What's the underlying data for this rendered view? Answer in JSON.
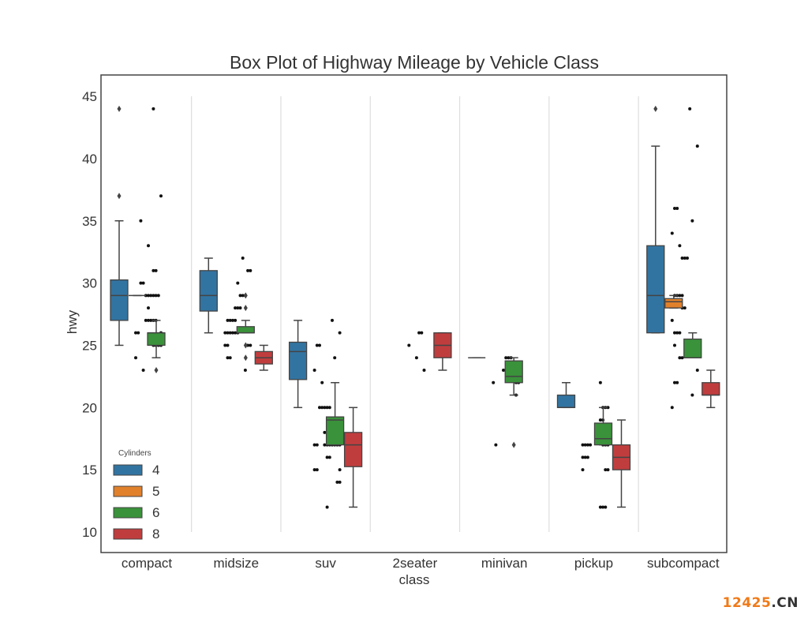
{
  "chart_data": {
    "type": "box",
    "title": "Box Plot of Highway Mileage by Vehicle Class",
    "xlabel": "class",
    "ylabel": "hwy",
    "ylim": [
      8.5,
      46.7
    ],
    "yticks": [
      10,
      15,
      20,
      25,
      30,
      35,
      40,
      45
    ],
    "categories": [
      "compact",
      "midsize",
      "suv",
      "2seater",
      "minivan",
      "pickup",
      "subcompact"
    ],
    "grid": "vertical separators between classes",
    "legend": {
      "title": "Cylinders",
      "placement": "lower-left",
      "entries": [
        {
          "label": "4",
          "color": "#3274a1"
        },
        {
          "label": "5",
          "color": "#e1812c"
        },
        {
          "label": "6",
          "color": "#3a923a"
        },
        {
          "label": "8",
          "color": "#c03d3e"
        }
      ]
    },
    "hue_order": [
      "4",
      "5",
      "6",
      "8"
    ],
    "boxes": [
      {
        "category": "compact",
        "hue": "4",
        "q1": 27,
        "median": 29,
        "q3": 30.25,
        "whislo": 25,
        "whishi": 35,
        "fliers": [
          37,
          44
        ]
      },
      {
        "category": "compact",
        "hue": "5",
        "q1": 29,
        "median": 29,
        "q3": 29,
        "whislo": 29,
        "whishi": 29,
        "fliers": []
      },
      {
        "category": "compact",
        "hue": "6",
        "q1": 25,
        "median": 26,
        "q3": 26,
        "whislo": 24,
        "whishi": 27,
        "fliers": [
          23
        ]
      },
      {
        "category": "midsize",
        "hue": "4",
        "q1": 27.75,
        "median": 29,
        "q3": 31,
        "whislo": 26,
        "whishi": 32,
        "fliers": []
      },
      {
        "category": "midsize",
        "hue": "6",
        "q1": 26,
        "median": 26,
        "q3": 26.5,
        "whislo": 26,
        "whishi": 27,
        "fliers": [
          29,
          28,
          25,
          24
        ]
      },
      {
        "category": "midsize",
        "hue": "8",
        "q1": 23.5,
        "median": 24,
        "q3": 24.5,
        "whislo": 23,
        "whishi": 25,
        "fliers": []
      },
      {
        "category": "suv",
        "hue": "4",
        "q1": 22.25,
        "median": 24.5,
        "q3": 25.25,
        "whislo": 20,
        "whishi": 27,
        "fliers": []
      },
      {
        "category": "suv",
        "hue": "6",
        "q1": 17,
        "median": 19,
        "q3": 19.25,
        "whislo": 17,
        "whishi": 22,
        "fliers": []
      },
      {
        "category": "suv",
        "hue": "8",
        "q1": 15.25,
        "median": 17,
        "q3": 18,
        "whislo": 12,
        "whishi": 20,
        "fliers": []
      },
      {
        "category": "2seater",
        "hue": "8",
        "q1": 24,
        "median": 25,
        "q3": 26,
        "whislo": 23,
        "whishi": 26,
        "fliers": []
      },
      {
        "category": "minivan",
        "hue": "4",
        "q1": 24,
        "median": 24,
        "q3": 24,
        "whislo": 24,
        "whishi": 24,
        "fliers": []
      },
      {
        "category": "minivan",
        "hue": "6",
        "q1": 22,
        "median": 22.5,
        "q3": 23.75,
        "whislo": 21,
        "whishi": 24,
        "fliers": [
          17
        ]
      },
      {
        "category": "pickup",
        "hue": "4",
        "q1": 20,
        "median": 20,
        "q3": 21,
        "whislo": 20,
        "whishi": 22,
        "fliers": []
      },
      {
        "category": "pickup",
        "hue": "6",
        "q1": 17,
        "median": 17.5,
        "q3": 18.75,
        "whislo": 17,
        "whishi": 20,
        "fliers": []
      },
      {
        "category": "pickup",
        "hue": "8",
        "q1": 15,
        "median": 16,
        "q3": 17,
        "whislo": 12,
        "whishi": 19,
        "fliers": []
      },
      {
        "category": "subcompact",
        "hue": "4",
        "q1": 26,
        "median": 29,
        "q3": 33,
        "whislo": 26,
        "whishi": 41,
        "fliers": [
          44
        ]
      },
      {
        "category": "subcompact",
        "hue": "5",
        "q1": 28,
        "median": 28.5,
        "q3": 28.75,
        "whislo": 28,
        "whishi": 29,
        "fliers": []
      },
      {
        "category": "subcompact",
        "hue": "6",
        "q1": 24,
        "median": 24,
        "q3": 25.5,
        "whislo": 24,
        "whishi": 26,
        "fliers": []
      },
      {
        "category": "subcompact",
        "hue": "8",
        "q1": 21,
        "median": 21,
        "q3": 22,
        "whislo": 20,
        "whishi": 23,
        "fliers": []
      }
    ],
    "strip_points": [
      {
        "category": "compact",
        "values": [
          44,
          37,
          35,
          33,
          31,
          31,
          30,
          30,
          29,
          29,
          29,
          29,
          29,
          29,
          28,
          27,
          27,
          27,
          27,
          27,
          26,
          26,
          26,
          25,
          25,
          25,
          25,
          24,
          23
        ]
      },
      {
        "category": "midsize",
        "values": [
          32,
          31,
          31,
          30,
          29,
          29,
          29,
          28,
          28,
          28,
          27,
          27,
          27,
          27,
          26,
          26,
          26,
          26,
          26,
          26,
          25,
          25,
          25,
          25,
          24,
          24,
          23
        ]
      },
      {
        "category": "suv",
        "values": [
          27,
          26,
          25,
          25,
          24,
          23,
          22,
          20,
          20,
          20,
          20,
          20,
          19,
          19,
          19,
          18,
          18,
          18,
          18,
          18,
          17,
          17,
          17,
          17,
          17,
          17,
          17,
          17,
          17,
          16,
          16,
          15,
          15,
          15,
          14,
          14,
          12
        ]
      },
      {
        "category": "2seater",
        "values": [
          26,
          26,
          25,
          24,
          23
        ]
      },
      {
        "category": "minivan",
        "values": [
          24,
          24,
          24,
          23,
          23,
          22,
          22,
          22,
          21,
          17
        ]
      },
      {
        "category": "pickup",
        "values": [
          22,
          20,
          20,
          20,
          19,
          19,
          17,
          17,
          17,
          17,
          17,
          17,
          17,
          16,
          16,
          16,
          15,
          15,
          15,
          12,
          12,
          12
        ]
      },
      {
        "category": "subcompact",
        "values": [
          44,
          41,
          36,
          36,
          35,
          34,
          33,
          32,
          32,
          32,
          29,
          29,
          29,
          29,
          28,
          28,
          27,
          26,
          26,
          26,
          25,
          24,
          24,
          23,
          22,
          22,
          21,
          20
        ]
      }
    ]
  },
  "watermark": {
    "number": "12425",
    "suffix": ".CN"
  }
}
